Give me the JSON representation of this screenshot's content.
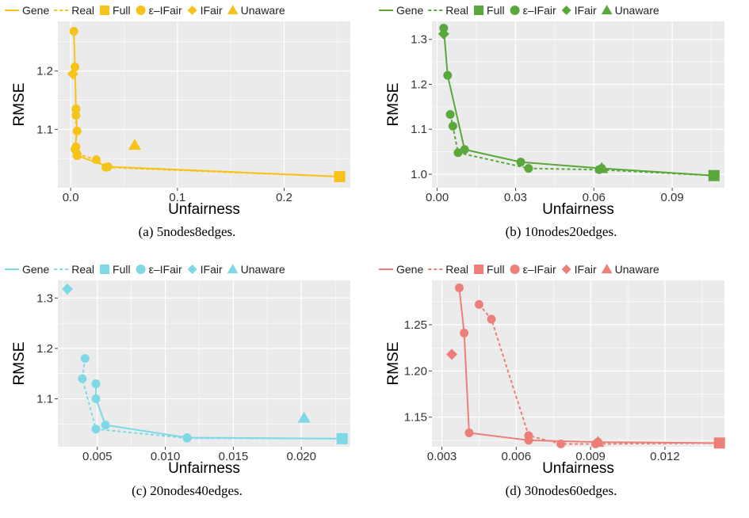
{
  "legend": {
    "gene": "Gene",
    "real": "Real",
    "full": "Full",
    "eps": "ε–IFair",
    "ifair": "IFair",
    "unaware": "Unaware"
  },
  "axis": {
    "xlabel": "Unfairness",
    "ylabel": "RMSE"
  },
  "chart_data": [
    {
      "type": "scatter",
      "caption": "(a) 5nodes8edges.",
      "color": "#f5c31a",
      "xlabel": "Unfairness",
      "ylabel": "RMSE",
      "xlim": [
        -0.012,
        0.262
      ],
      "ylim": [
        1.0,
        1.285
      ],
      "xticks": [
        0.0,
        0.1,
        0.2
      ],
      "xtick_labels": [
        "0.0",
        "0.1",
        "0.2"
      ],
      "yticks": [
        1.1,
        1.2
      ],
      "ytick_labels": [
        "1.1",
        "1.2"
      ],
      "series": [
        {
          "name": "Gene",
          "marker": "circle",
          "line": "solid",
          "points": [
            [
              0.003,
              1.268
            ],
            [
              0.004,
              1.207
            ],
            [
              0.005,
              1.135
            ],
            [
              0.006,
              1.097
            ],
            [
              0.004,
              1.066
            ],
            [
              0.006,
              1.055
            ],
            [
              0.035,
              1.036
            ],
            [
              0.252,
              1.019
            ]
          ]
        },
        {
          "name": "Real",
          "marker": "circle",
          "line": "dashed",
          "points": [
            [
              0.005,
              1.124
            ],
            [
              0.005,
              1.07
            ],
            [
              0.006,
              1.058
            ],
            [
              0.024,
              1.048
            ],
            [
              0.033,
              1.035
            ],
            [
              0.252,
              1.019
            ]
          ]
        },
        {
          "name": "Full",
          "marker": "square",
          "points": [
            [
              0.252,
              1.019
            ]
          ]
        },
        {
          "name": "IFair",
          "marker": "diamond",
          "points": [
            [
              0.002,
              1.195
            ]
          ]
        },
        {
          "name": "Unaware",
          "marker": "triangle",
          "points": [
            [
              0.06,
              1.073
            ]
          ]
        }
      ]
    },
    {
      "type": "scatter",
      "caption": "(b) 10nodes20edges.",
      "color": "#5aa83b",
      "xlabel": "Unfairness",
      "ylabel": "RMSE",
      "xlim": [
        -0.002,
        0.11
      ],
      "ylim": [
        0.97,
        1.34
      ],
      "xticks": [
        0.0,
        0.03,
        0.06,
        0.09
      ],
      "xtick_labels": [
        "0.00",
        "0.03",
        "0.06",
        "0.09"
      ],
      "yticks": [
        1.0,
        1.1,
        1.2,
        1.3
      ],
      "ytick_labels": [
        "1.0",
        "1.1",
        "1.2",
        "1.3"
      ],
      "series": [
        {
          "name": "Gene",
          "marker": "circle",
          "line": "solid",
          "points": [
            [
              0.0025,
              1.325
            ],
            [
              0.004,
              1.22
            ],
            [
              0.0105,
              1.055
            ],
            [
              0.032,
              1.027
            ],
            [
              0.063,
              1.013
            ],
            [
              0.106,
              0.997
            ]
          ]
        },
        {
          "name": "Real",
          "marker": "circle",
          "line": "dashed",
          "points": [
            [
              0.005,
              1.133
            ],
            [
              0.006,
              1.107
            ],
            [
              0.008,
              1.048
            ],
            [
              0.035,
              1.013
            ],
            [
              0.062,
              1.01
            ],
            [
              0.106,
              0.997
            ]
          ]
        },
        {
          "name": "Full",
          "marker": "square",
          "points": [
            [
              0.106,
              0.997
            ]
          ]
        },
        {
          "name": "IFair",
          "marker": "diamond",
          "points": [
            [
              0.0025,
              1.312
            ]
          ]
        },
        {
          "name": "Unaware",
          "marker": "triangle",
          "points": [
            [
              0.063,
              1.013
            ]
          ]
        }
      ]
    },
    {
      "type": "scatter",
      "caption": "(c) 20nodes40edges.",
      "color": "#7ed8e6",
      "xlabel": "Unfairness",
      "ylabel": "RMSE",
      "xlim": [
        0.0021,
        0.0236
      ],
      "ylim": [
        1.005,
        1.335
      ],
      "xticks": [
        0.005,
        0.01,
        0.015,
        0.02
      ],
      "xtick_labels": [
        "0.005",
        "0.010",
        "0.015",
        "0.020"
      ],
      "yticks": [
        1.1,
        1.2,
        1.3
      ],
      "ytick_labels": [
        "1.1",
        "1.2",
        "1.3"
      ],
      "series": [
        {
          "name": "Gene",
          "marker": "circle",
          "line": "solid",
          "points": [
            [
              0.0049,
              1.13
            ],
            [
              0.0049,
              1.1
            ],
            [
              0.0056,
              1.048
            ],
            [
              0.0116,
              1.023
            ],
            [
              0.023,
              1.021
            ]
          ]
        },
        {
          "name": "Real",
          "marker": "circle",
          "line": "dashed",
          "points": [
            [
              0.0041,
              1.18
            ],
            [
              0.0039,
              1.14
            ],
            [
              0.0049,
              1.04
            ],
            [
              0.0116,
              1.022
            ],
            [
              0.023,
              1.021
            ]
          ]
        },
        {
          "name": "Full",
          "marker": "square",
          "points": [
            [
              0.023,
              1.021
            ]
          ]
        },
        {
          "name": "IFair",
          "marker": "diamond",
          "points": [
            [
              0.0028,
              1.318
            ]
          ]
        },
        {
          "name": "Unaware",
          "marker": "triangle",
          "points": [
            [
              0.0202,
              1.062
            ]
          ]
        }
      ]
    },
    {
      "type": "scatter",
      "caption": "(d) 30nodes60edges.",
      "color": "#ec8079",
      "xlabel": "Unfairness",
      "ylabel": "RMSE",
      "xlim": [
        0.0026,
        0.0144
      ],
      "ylim": [
        1.118,
        1.298
      ],
      "xticks": [
        0.003,
        0.006,
        0.009,
        0.012
      ],
      "xtick_labels": [
        "0.003",
        "0.006",
        "0.009",
        "0.012"
      ],
      "yticks": [
        1.15,
        1.2,
        1.25
      ],
      "ytick_labels": [
        "1.15",
        "1.20",
        "1.25"
      ],
      "series": [
        {
          "name": "Gene",
          "marker": "circle",
          "line": "solid",
          "points": [
            [
              0.0037,
              1.29
            ],
            [
              0.0039,
              1.241
            ],
            [
              0.0041,
              1.133
            ],
            [
              0.0065,
              1.125
            ],
            [
              0.0093,
              1.123
            ],
            [
              0.0142,
              1.122
            ]
          ]
        },
        {
          "name": "Real",
          "marker": "circle",
          "line": "dashed",
          "points": [
            [
              0.0045,
              1.272
            ],
            [
              0.005,
              1.256
            ],
            [
              0.0065,
              1.13
            ],
            [
              0.0078,
              1.121
            ],
            [
              0.0092,
              1.121
            ],
            [
              0.0142,
              1.122
            ]
          ]
        },
        {
          "name": "Full",
          "marker": "square",
          "points": [
            [
              0.0142,
              1.122
            ]
          ]
        },
        {
          "name": "IFair",
          "marker": "diamond",
          "points": [
            [
              0.0034,
              1.218
            ]
          ]
        },
        {
          "name": "Unaware",
          "marker": "triangle",
          "points": [
            [
              0.0093,
              1.123
            ]
          ]
        }
      ]
    }
  ]
}
